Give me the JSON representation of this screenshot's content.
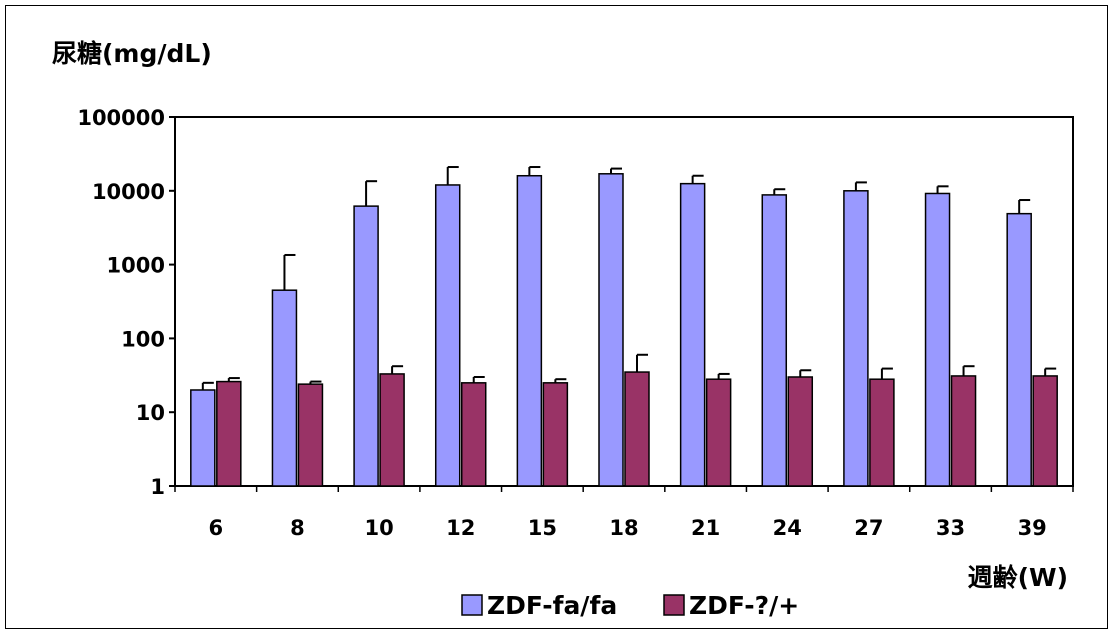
{
  "chart_data": {
    "type": "bar",
    "ylabel": "尿糖(mg/dL)",
    "xlabel": "週齢(W)",
    "y_scale": "log",
    "ylim": [
      1,
      100000
    ],
    "y_ticks": [
      "100000",
      "10000",
      "1000",
      "100",
      "10",
      "1"
    ],
    "categories": [
      "6",
      "8",
      "10",
      "12",
      "15",
      "18",
      "21",
      "24",
      "27",
      "33",
      "39"
    ],
    "series": [
      {
        "name": "ZDF-fa/fa",
        "color": "#9999ff",
        "values": [
          20,
          450,
          6200,
          12000,
          16000,
          17000,
          12500,
          8800,
          10000,
          9200,
          4900
        ],
        "error_upper": [
          25,
          1350,
          13500,
          21000,
          21000,
          20000,
          16000,
          10500,
          13000,
          11500,
          7500
        ]
      },
      {
        "name": "ZDF-?/+",
        "color": "#993366",
        "values": [
          26,
          24,
          33,
          25,
          25,
          35,
          28,
          30,
          28,
          31,
          31
        ],
        "error_upper": [
          29,
          26,
          42,
          30,
          28,
          60,
          33,
          37,
          39,
          42,
          39
        ]
      }
    ],
    "legend_position": "bottom"
  }
}
